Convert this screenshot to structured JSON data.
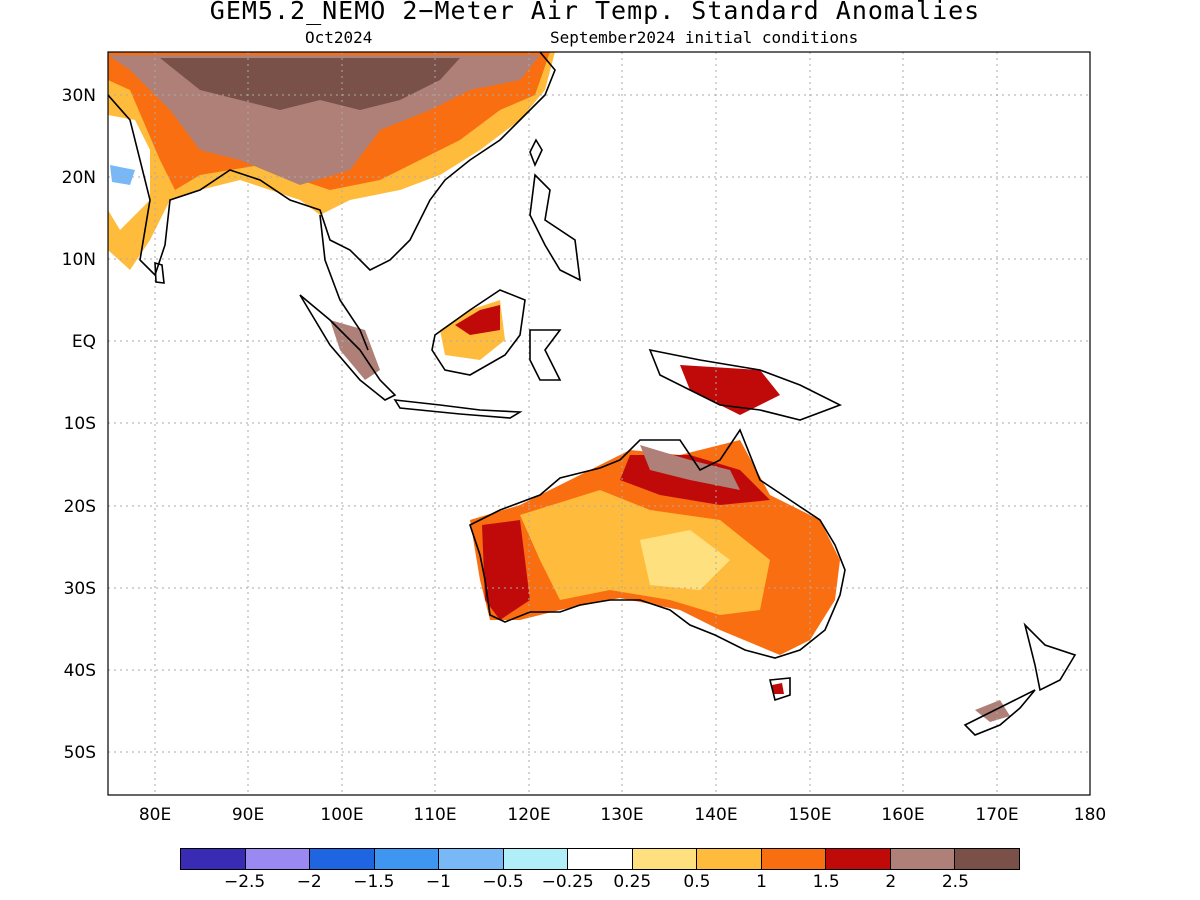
{
  "title": "GEM5.2_NEMO 2−Meter Air Temp. Standard Anomalies",
  "subtitle_left": "Oct2024",
  "subtitle_right": "September2024 initial conditions",
  "map": {
    "projection": "lat-lon",
    "lon_range": [
      75,
      180
    ],
    "lat_range": [
      -55,
      35
    ],
    "grid": "dotted",
    "lat_labels": [
      "30N",
      "20N",
      "10N",
      "EQ",
      "10S",
      "20S",
      "30S",
      "40S",
      "50S"
    ],
    "lon_labels": [
      "80E",
      "90E",
      "100E",
      "110E",
      "120E",
      "130E",
      "140E",
      "150E",
      "160E",
      "170E",
      "180"
    ]
  },
  "legend": {
    "colors": [
      "#3a2bb5",
      "#9b89f2",
      "#1f64e0",
      "#3f96f0",
      "#79b8f6",
      "#b0eef8",
      "#ffffff",
      "#ffe07e",
      "#ffbc3c",
      "#f96e10",
      "#c00a0a",
      "#ae8078",
      "#7a5148"
    ],
    "labels": [
      "−2.5",
      "−2",
      "−1.5",
      "−1",
      "−0.5",
      "−0.25",
      "0.25",
      "0.5",
      "1",
      "1.5",
      "2",
      "2.5"
    ]
  }
}
